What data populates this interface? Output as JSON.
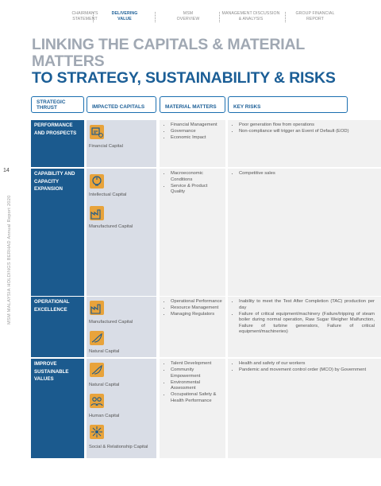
{
  "nav": [
    {
      "label": "CHAIRMAN'S\nSTATEMENT",
      "active": false
    },
    {
      "label": "DELIVERING\nVALUE",
      "active": true
    },
    {
      "label": "MSM\nOVERVIEW",
      "active": false
    },
    {
      "label": "MANAGEMENT DISCUSSION\n& ANALYSIS",
      "active": false
    },
    {
      "label": "GROUP FINANCIAL\nREPORT",
      "active": false
    }
  ],
  "title": {
    "line1": "LINKING THE CAPITALS & MATERIAL MATTERS",
    "line2": "TO STRATEGY, SUSTAINABILITY & RISKS"
  },
  "page_number": "14",
  "side_text": "MSM MALAYSIA HOLDINGS BERHAD  Annual Report 2020",
  "headers": {
    "thrust": "STRATEGIC THRUST",
    "capitals": "IMPACTED CAPITALS",
    "matters": "MATERIAL MATTERS",
    "risks": "KEY RISKS"
  },
  "rows": [
    {
      "thrust": "PERFORMANCE AND PROSPECTS",
      "capitals": [
        {
          "label": "Financial Capital",
          "icon": "financial-capital-icon"
        }
      ],
      "matters": [
        "Financial Management",
        "Governance",
        "Economic Impact"
      ],
      "risks": [
        "Poor generation flow from operations",
        "Non-compliance will trigger an Event of Default (EOD)"
      ]
    },
    {
      "thrust": "CAPABILITY AND CAPACITY EXPANSION",
      "capitals": [
        {
          "label": "Intellectual Capital",
          "icon": "intellectual-capital-icon"
        },
        {
          "label": "Manufactured Capital",
          "icon": "manufactured-capital-icon"
        }
      ],
      "matters": [
        "Macroeconomic Conditions",
        "Service & Product Quality"
      ],
      "risks": [
        "Competitive sales"
      ]
    },
    {
      "thrust": "OPERATIONAL EXCELLENCE",
      "capitals": [
        {
          "label": "Manufactured Capital",
          "icon": "manufactured-capital-icon"
        },
        {
          "label": "Natural Capital",
          "icon": "natural-capital-icon"
        }
      ],
      "matters": [
        "Operational Performance",
        "Resource Management",
        "Managing Regulators"
      ],
      "risks": [
        "Inability to meet the Test After Completion (TAC) production per day",
        "Failure of critical equipment/machinery (Failure/tripping of steam boiler during normal operation, Raw Sugar Weigher Malfunction, Failure of turbine generators, Failure of critical equipment/machineries)"
      ]
    },
    {
      "thrust": "IMPROVE SUSTAINABLE VALUES",
      "capitals": [
        {
          "label": "Natural Capital",
          "icon": "natural-capital-icon"
        },
        {
          "label": "Human Capital",
          "icon": "human-capital-icon"
        },
        {
          "label": "Social & Relationship Capital",
          "icon": "social-relationship-capital-icon"
        }
      ],
      "matters": [
        "Talent Development",
        "Community Empowerment",
        "Environmental Assessment",
        "Occupational Safety & Health Performance"
      ],
      "risks": [
        "Health and safety of our workers",
        "Pandemic and movement control order (MCO) by Government"
      ]
    }
  ],
  "colors": {
    "thrust_bg": "#1b5a8e",
    "accent": "#e8a33b",
    "title_grey": "#a0a8b3",
    "title_blue": "#1b5e96"
  }
}
